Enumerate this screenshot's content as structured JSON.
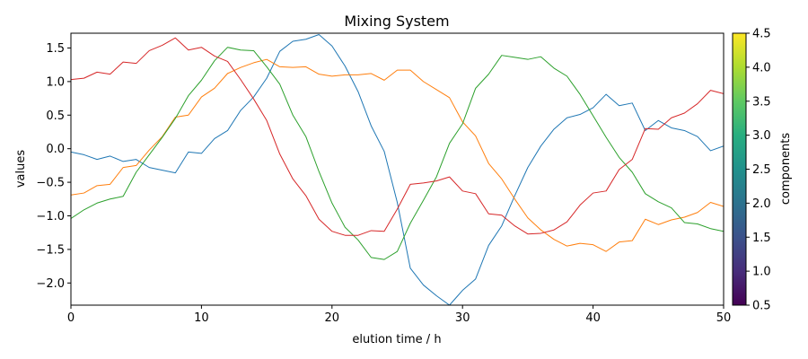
{
  "chart_data": {
    "type": "line",
    "title": "Mixing System",
    "xlabel": "elution time / h",
    "ylabel": "values",
    "xlim": [
      0,
      50
    ],
    "ylim": [
      -2.33,
      1.72
    ],
    "xticks": [
      0,
      10,
      20,
      30,
      40,
      50
    ],
    "yticks": [
      -2.0,
      -1.5,
      -1.0,
      -0.5,
      0.0,
      0.5,
      1.0,
      1.5
    ],
    "grid": false,
    "legend": "none",
    "colorbar": {
      "label": "components",
      "range": [
        0.5,
        4.5
      ],
      "ticks": [
        0.5,
        1.0,
        1.5,
        2.0,
        2.5,
        3.0,
        3.5,
        4.0,
        4.5
      ],
      "colormap": "viridis"
    },
    "x": [
      0,
      1,
      2,
      3,
      4,
      5,
      6,
      7,
      8,
      9,
      10,
      11,
      12,
      13,
      14,
      15,
      16,
      17,
      18,
      19,
      20,
      21,
      22,
      23,
      24,
      25,
      26,
      27,
      28,
      29,
      30,
      31,
      32,
      33,
      34,
      35,
      36,
      37,
      38,
      39,
      40,
      41,
      42,
      43,
      44,
      45,
      46,
      47,
      48,
      49,
      50
    ],
    "series": [
      {
        "color": "#1f77b4",
        "values": [
          -0.05,
          -0.09,
          -0.16,
          -0.11,
          -0.19,
          -0.16,
          -0.28,
          -0.32,
          -0.36,
          -0.05,
          -0.07,
          0.15,
          0.27,
          0.57,
          0.77,
          1.05,
          1.45,
          1.6,
          1.63,
          1.7,
          1.53,
          1.23,
          0.85,
          0.34,
          -0.04,
          -0.8,
          -1.78,
          -2.03,
          -2.19,
          -2.33,
          -2.11,
          -1.94,
          -1.44,
          -1.15,
          -0.7,
          -0.28,
          0.04,
          0.29,
          0.46,
          0.51,
          0.61,
          0.81,
          0.64,
          0.68,
          0.27,
          0.42,
          0.31,
          0.27,
          0.18,
          -0.03,
          0.04
        ]
      },
      {
        "color": "#ff7f0e",
        "values": [
          -0.69,
          -0.66,
          -0.55,
          -0.53,
          -0.28,
          -0.25,
          -0.02,
          0.18,
          0.47,
          0.5,
          0.77,
          0.9,
          1.12,
          1.21,
          1.28,
          1.33,
          1.22,
          1.21,
          1.22,
          1.11,
          1.08,
          1.1,
          1.1,
          1.12,
          1.02,
          1.17,
          1.17,
          1.0,
          0.88,
          0.76,
          0.4,
          0.19,
          -0.22,
          -0.45,
          -0.75,
          -1.03,
          -1.21,
          -1.35,
          -1.45,
          -1.41,
          -1.43,
          -1.53,
          -1.39,
          -1.37,
          -1.05,
          -1.13,
          -1.06,
          -1.02,
          -0.95,
          -0.8,
          -0.86
        ]
      },
      {
        "color": "#2ca02c",
        "values": [
          -1.04,
          -0.91,
          -0.81,
          -0.75,
          -0.71,
          -0.35,
          -0.09,
          0.17,
          0.45,
          0.79,
          1.02,
          1.31,
          1.51,
          1.47,
          1.46,
          1.22,
          0.96,
          0.5,
          0.18,
          -0.34,
          -0.81,
          -1.17,
          -1.36,
          -1.62,
          -1.65,
          -1.53,
          -1.11,
          -0.77,
          -0.42,
          0.08,
          0.37,
          0.9,
          1.11,
          1.39,
          1.36,
          1.33,
          1.37,
          1.2,
          1.08,
          0.81,
          0.49,
          0.17,
          -0.13,
          -0.35,
          -0.67,
          -0.79,
          -0.88,
          -1.1,
          -1.12,
          -1.19,
          -1.23
        ]
      },
      {
        "color": "#d62728",
        "values": [
          1.03,
          1.05,
          1.14,
          1.11,
          1.29,
          1.27,
          1.46,
          1.54,
          1.65,
          1.47,
          1.51,
          1.38,
          1.3,
          1.03,
          0.74,
          0.42,
          -0.08,
          -0.45,
          -0.7,
          -1.05,
          -1.23,
          -1.29,
          -1.29,
          -1.22,
          -1.23,
          -0.9,
          -0.53,
          -0.51,
          -0.48,
          -0.42,
          -0.63,
          -0.67,
          -0.97,
          -0.99,
          -1.15,
          -1.27,
          -1.26,
          -1.21,
          -1.09,
          -0.84,
          -0.66,
          -0.63,
          -0.31,
          -0.16,
          0.3,
          0.29,
          0.46,
          0.53,
          0.67,
          0.87,
          0.82
        ]
      }
    ]
  }
}
